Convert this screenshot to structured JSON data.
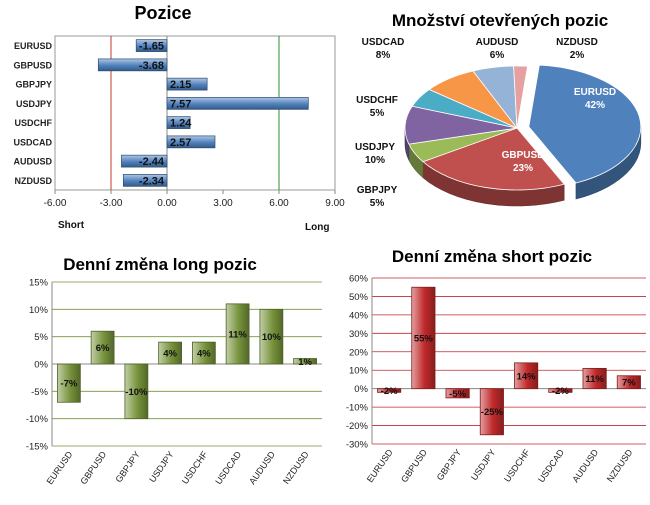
{
  "chart_data": [
    {
      "id": "positions",
      "type": "bar",
      "orientation": "horizontal",
      "title": "Pozice",
      "categories": [
        "EURUSD",
        "GBPUSD",
        "GBPJPY",
        "USDJPY",
        "USDCHF",
        "USDCAD",
        "AUDUSD",
        "NZDUSD"
      ],
      "values": [
        -1.65,
        -3.68,
        2.15,
        7.57,
        1.24,
        2.57,
        -2.44,
        -2.34
      ],
      "value_labels": [
        "-1.65",
        "-3.68",
        "2.15",
        "7.57",
        "1.24",
        "2.57",
        "-2.44",
        "-2.34"
      ],
      "xlim": [
        -6,
        9
      ],
      "xticks": [
        -6,
        -3,
        0,
        3,
        6,
        9
      ],
      "xtick_labels": [
        "-6.00",
        "-3.00",
        "0.00",
        "3.00",
        "6.00",
        "9.00"
      ],
      "left_label": "Short",
      "right_label": "Long",
      "reference_lines": [
        {
          "value": -3,
          "color": "#c0392b"
        },
        {
          "value": 6,
          "color": "#2e8b2e"
        }
      ],
      "color": "#4f81bd"
    },
    {
      "id": "open-positions",
      "type": "pie",
      "title": "Množství otevřených pozic",
      "slices": [
        {
          "label": "EURUSD",
          "value": 42,
          "pct": "42%",
          "color": "#4f81bd"
        },
        {
          "label": "GBPUSD",
          "value": 23,
          "pct": "23%",
          "color": "#c0504d"
        },
        {
          "label": "GBPJPY",
          "value": 5,
          "pct": "5%",
          "color": "#9bbb59"
        },
        {
          "label": "USDJPY",
          "value": 10,
          "pct": "10%",
          "color": "#8064a2"
        },
        {
          "label": "USDCHF",
          "value": 5,
          "pct": "5%",
          "color": "#4bacc6"
        },
        {
          "label": "USDCAD",
          "value": 8,
          "pct": "8%",
          "color": "#f79646"
        },
        {
          "label": "AUDUSD",
          "value": 6,
          "pct": "6%",
          "color": "#95b3d7"
        },
        {
          "label": "NZDUSD",
          "value": 2,
          "pct": "2%",
          "color": "#e6a0a0"
        }
      ]
    },
    {
      "id": "daily-long",
      "type": "bar",
      "title": "Denní změna long pozic",
      "categories": [
        "EURUSD",
        "GBPUSD",
        "GBPJPY",
        "USDJPY",
        "USDCHF",
        "USDCAD",
        "AUDUSD",
        "NZDUSD"
      ],
      "values": [
        -7,
        6,
        -10,
        4,
        4,
        11,
        10,
        1
      ],
      "value_labels": [
        "-7%",
        "6%",
        "-10%",
        "4%",
        "4%",
        "11%",
        "10%",
        "1%"
      ],
      "ylim": [
        -15,
        15
      ],
      "yticks": [
        -15,
        -10,
        -5,
        0,
        5,
        10,
        15
      ],
      "ytick_labels": [
        "-15%",
        "-10%",
        "-5%",
        "0%",
        "5%",
        "10%",
        "15%"
      ],
      "grid": true,
      "color": "#77933c"
    },
    {
      "id": "daily-short",
      "type": "bar",
      "title": "Denní změna short pozic",
      "categories": [
        "EURUSD",
        "GBPUSD",
        "GBPJPY",
        "USDJPY",
        "USDCHF",
        "USDCAD",
        "AUDUSD",
        "NZDUSD"
      ],
      "values": [
        -2,
        55,
        -5,
        -25,
        14,
        -2,
        11,
        7
      ],
      "value_labels": [
        "-2%",
        "55%",
        "-5%",
        "-25%",
        "14%",
        "-2%",
        "11%",
        "7%"
      ],
      "ylim": [
        -30,
        60
      ],
      "yticks": [
        -30,
        -20,
        -10,
        0,
        10,
        20,
        30,
        40,
        50,
        60
      ],
      "ytick_labels": [
        "-30%",
        "-20%",
        "-10%",
        "0%",
        "10%",
        "20%",
        "30%",
        "40%",
        "50%",
        "60%"
      ],
      "grid": true,
      "color": "#c0292b"
    }
  ]
}
